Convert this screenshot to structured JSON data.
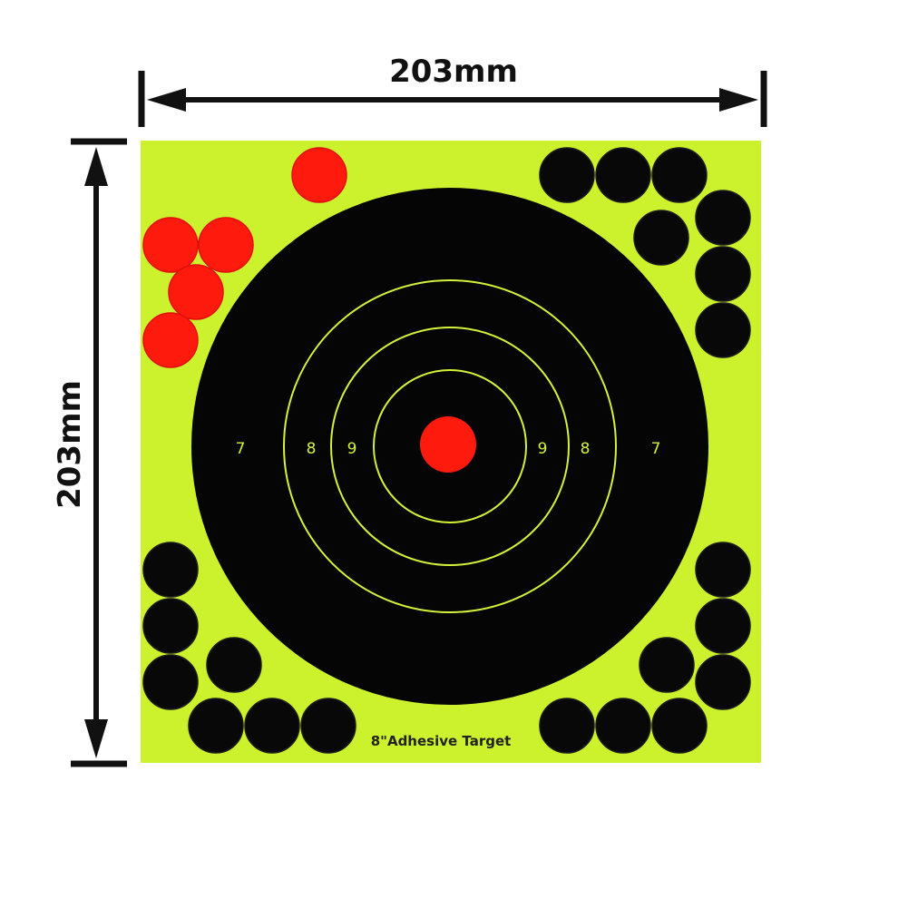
{
  "dimensions": {
    "width_label": "203mm",
    "height_label": "203mm"
  },
  "target": {
    "caption": "8\"Adhesive Target",
    "ring_labels_left": [
      "7",
      "8",
      "9"
    ],
    "ring_labels_right": [
      "9",
      "8",
      "7"
    ]
  },
  "colors": {
    "paper": "#ccf22e",
    "target": "#050505",
    "ring": "#d4f23a",
    "bullseye": "#ff1a0e",
    "red_patch": "#ff1a0e",
    "black_patch": "#080808"
  },
  "patches": {
    "red_count": 5,
    "black_count": 21
  }
}
